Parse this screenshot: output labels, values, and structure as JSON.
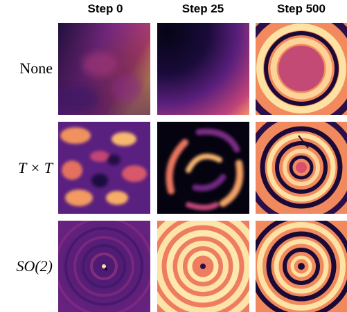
{
  "columns": [
    "Step 0",
    "Step 25",
    "Step 500"
  ],
  "rows": [
    {
      "label": "None"
    },
    {
      "label": "T × T"
    },
    {
      "label": "SO(2)"
    }
  ]
}
